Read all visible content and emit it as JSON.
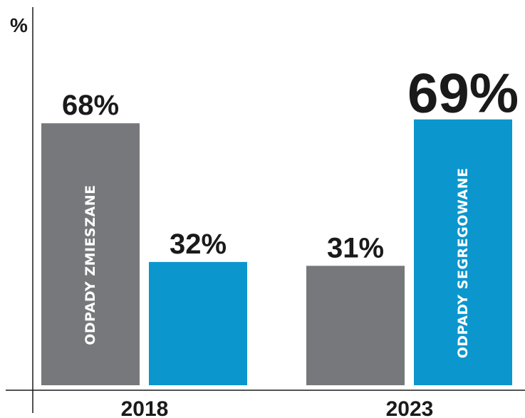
{
  "chart_data": {
    "type": "bar",
    "ylabel": "%",
    "ylim": [
      0,
      100
    ],
    "grid": false,
    "legend": "none",
    "categories": [
      "2018",
      "2023"
    ],
    "series": [
      {
        "name": "ODPADY ZMIESZANE",
        "color": "#77787b",
        "values": [
          68,
          31
        ]
      },
      {
        "name": "ODPADY SEGREGOWANE",
        "color": "#0b96cd",
        "values": [
          32,
          69
        ]
      }
    ],
    "value_labels": [
      [
        "68%",
        "31%"
      ],
      [
        "32%",
        "69%"
      ]
    ],
    "in_bar_labels": [
      {
        "series": 0,
        "category": 0,
        "text": "ODPADY ZMIESZANE"
      },
      {
        "series": 1,
        "category": 1,
        "text": "ODPADY SEGREGOWANE"
      }
    ],
    "emphasized_label": {
      "series": 1,
      "category": 1
    }
  }
}
